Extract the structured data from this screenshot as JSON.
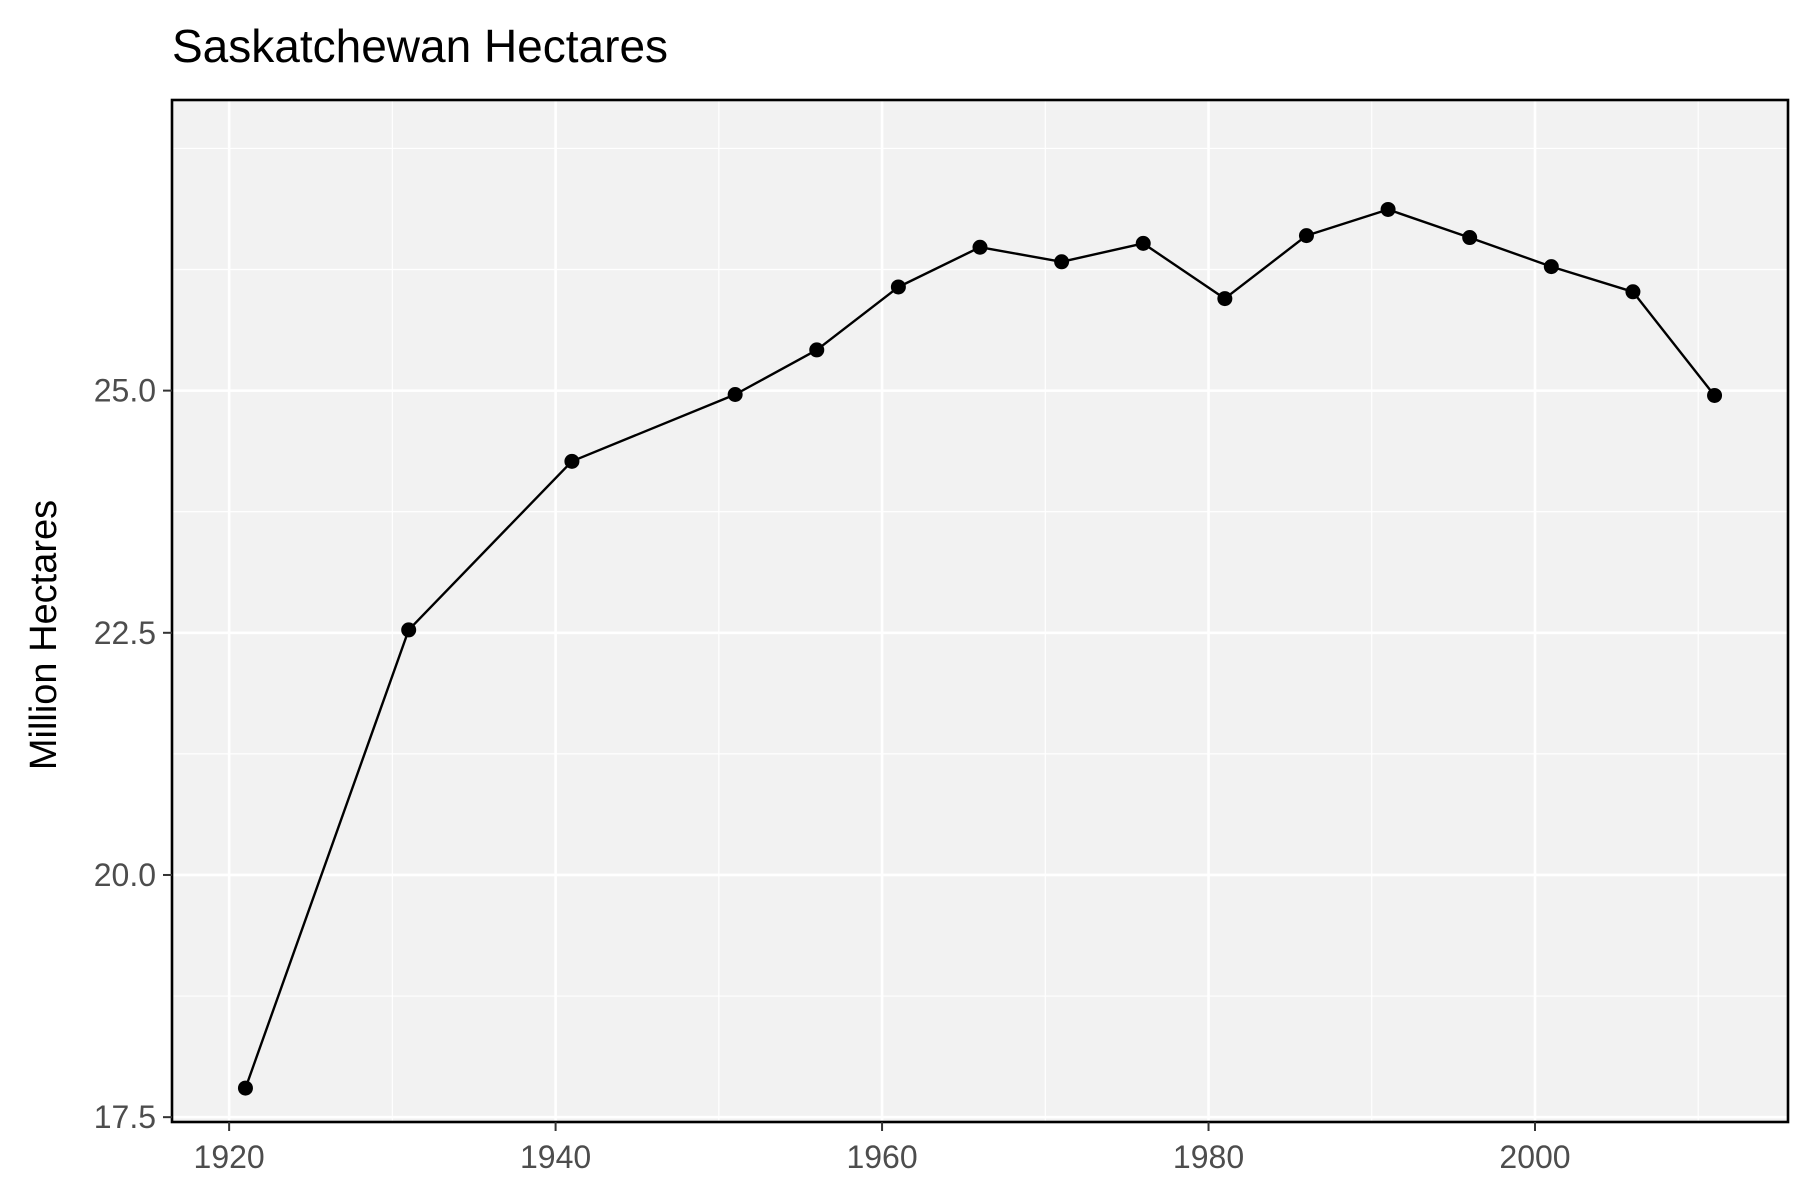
{
  "chart_data": {
    "type": "line",
    "title": "Saskatchewan Hectares",
    "xlabel": "",
    "ylabel": "Million Hectares",
    "xlim": [
      1916.5,
      2015.5
    ],
    "ylim": [
      17.45,
      28.0
    ],
    "x_ticks": [
      1920,
      1940,
      1960,
      1980,
      2000
    ],
    "x_minor": [
      1930,
      1950,
      1970,
      1990,
      2010
    ],
    "y_ticks": [
      17.5,
      20.0,
      22.5,
      25.0
    ],
    "y_tick_labels": [
      "17.5",
      "20.0",
      "22.5",
      "25.0"
    ],
    "y_minor": [
      18.75,
      21.25,
      23.75,
      26.25,
      27.5
    ],
    "grid": true,
    "legend": "none",
    "colors": {
      "panel": "#f2f2f2",
      "grid": "#ffffff",
      "line": "#000000",
      "point": "#000000",
      "border": "#000000"
    },
    "series": [
      {
        "x": [
          1921,
          1931,
          1941,
          1951,
          1956,
          1961,
          1966,
          1971,
          1976,
          1981,
          1986,
          1991,
          1996,
          2001,
          2006,
          2011
        ],
        "values": [
          17.8,
          22.53,
          24.27,
          24.96,
          25.42,
          26.07,
          26.48,
          26.33,
          26.52,
          25.95,
          26.6,
          26.87,
          26.58,
          26.28,
          26.02,
          24.95
        ]
      }
    ]
  }
}
